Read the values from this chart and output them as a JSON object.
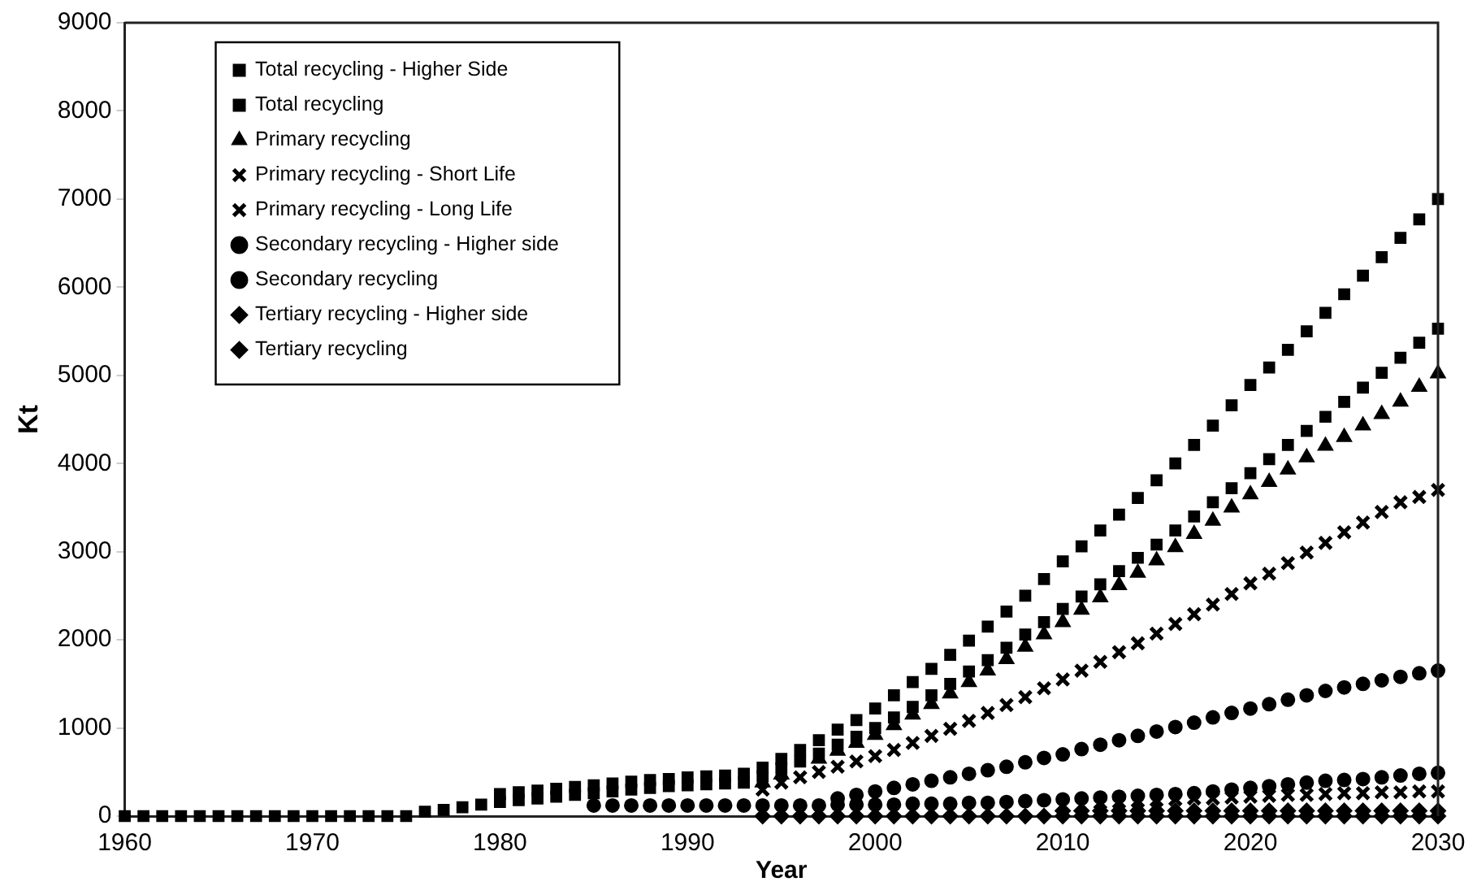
{
  "chart_data": {
    "type": "scatter",
    "xlabel": "Year",
    "ylabel": "Kt",
    "xlim": [
      1960,
      2030
    ],
    "xticks": [
      1960,
      1970,
      1980,
      1990,
      2000,
      2010,
      2020,
      2030
    ],
    "ylim": [
      0,
      9000
    ],
    "yticks": [
      0,
      1000,
      2000,
      3000,
      4000,
      5000,
      6000,
      7000,
      8000,
      9000
    ],
    "grid": false,
    "legend": "top left",
    "x": [
      1960,
      1961,
      1962,
      1963,
      1964,
      1965,
      1966,
      1967,
      1968,
      1969,
      1970,
      1971,
      1972,
      1973,
      1974,
      1975,
      1976,
      1977,
      1978,
      1979,
      1980,
      1981,
      1982,
      1983,
      1984,
      1985,
      1986,
      1987,
      1988,
      1989,
      1990,
      1991,
      1992,
      1993,
      1994,
      1995,
      1996,
      1997,
      1998,
      1999,
      2000,
      2001,
      2002,
      2003,
      2004,
      2005,
      2006,
      2007,
      2008,
      2009,
      2010,
      2011,
      2012,
      2013,
      2014,
      2015,
      2016,
      2017,
      2018,
      2019,
      2020,
      2021,
      2022,
      2023,
      2024,
      2025,
      2026,
      2027,
      2028,
      2029,
      2030
    ],
    "series": [
      {
        "name": "Total recycling - Higher Side",
        "color": "#000000",
        "marker": "square",
        "values": [
          null,
          null,
          null,
          null,
          null,
          null,
          null,
          null,
          null,
          null,
          null,
          null,
          null,
          null,
          null,
          null,
          null,
          null,
          null,
          null,
          250,
          270,
          290,
          310,
          330,
          350,
          370,
          390,
          410,
          420,
          440,
          450,
          460,
          480,
          550,
          650,
          750,
          860,
          980,
          1090,
          1220,
          1370,
          1520,
          1670,
          1830,
          1990,
          2150,
          2320,
          2500,
          2690,
          2890,
          3060,
          3240,
          3420,
          3610,
          3810,
          4000,
          4210,
          4430,
          4660,
          4890,
          5090,
          5290,
          5500,
          5710,
          5920,
          6130,
          6340,
          6560,
          6770,
          7000
        ]
      },
      {
        "name": "Total recycling",
        "color": "#000000",
        "marker": "square",
        "values": [
          0,
          0,
          0,
          0,
          0,
          0,
          0,
          0,
          0,
          0,
          0,
          0,
          0,
          0,
          0,
          0,
          50,
          70,
          100,
          130,
          160,
          180,
          200,
          220,
          240,
          260,
          280,
          300,
          320,
          340,
          350,
          360,
          370,
          380,
          450,
          540,
          620,
          710,
          810,
          900,
          1000,
          1120,
          1240,
          1370,
          1500,
          1640,
          1770,
          1910,
          2060,
          2200,
          2350,
          2490,
          2630,
          2780,
          2930,
          3080,
          3240,
          3400,
          3560,
          3720,
          3890,
          4050,
          4210,
          4370,
          4530,
          4700,
          4860,
          5030,
          5200,
          5370,
          5530
        ]
      },
      {
        "name": "Primary recycling",
        "color": "#000000",
        "marker": "triangle",
        "values": [
          null,
          null,
          null,
          null,
          null,
          null,
          null,
          null,
          null,
          null,
          null,
          null,
          null,
          null,
          null,
          null,
          null,
          null,
          null,
          null,
          null,
          null,
          null,
          null,
          null,
          null,
          null,
          null,
          null,
          null,
          null,
          null,
          null,
          null,
          380,
          470,
          null,
          650,
          740,
          830,
          920,
          1030,
          1150,
          1270,
          1390,
          1520,
          1650,
          1780,
          1920,
          2060,
          2200,
          2340,
          2480,
          2620,
          2760,
          2900,
          3050,
          3200,
          3350,
          3500,
          3650,
          3790,
          3930,
          4070,
          4200,
          4300,
          4430,
          4560,
          4700,
          4870,
          5020
        ]
      },
      {
        "name": "Primary recycling - Short Life",
        "color": "#000000",
        "marker": "cross",
        "values": [
          null,
          null,
          null,
          null,
          null,
          null,
          null,
          null,
          null,
          null,
          null,
          null,
          null,
          null,
          null,
          null,
          null,
          null,
          null,
          null,
          null,
          null,
          null,
          null,
          null,
          null,
          null,
          null,
          null,
          null,
          null,
          null,
          null,
          null,
          300,
          380,
          440,
          500,
          560,
          620,
          680,
          750,
          830,
          910,
          990,
          1080,
          1170,
          1260,
          1350,
          1450,
          1550,
          1650,
          1750,
          1860,
          1960,
          2070,
          2180,
          2290,
          2400,
          2520,
          2640,
          2750,
          2870,
          2990,
          3100,
          3220,
          3330,
          3450,
          3560,
          3620,
          3700
        ]
      },
      {
        "name": "Primary recycling - Long Life",
        "color": "#000000",
        "marker": "cross",
        "values": [
          null,
          null,
          null,
          null,
          null,
          null,
          null,
          null,
          null,
          null,
          null,
          null,
          null,
          null,
          null,
          null,
          null,
          null,
          null,
          null,
          null,
          null,
          null,
          null,
          null,
          null,
          null,
          null,
          null,
          null,
          null,
          null,
          null,
          null,
          null,
          null,
          null,
          null,
          null,
          null,
          null,
          null,
          null,
          null,
          null,
          null,
          null,
          null,
          null,
          null,
          null,
          null,
          150,
          160,
          170,
          180,
          190,
          200,
          200,
          210,
          220,
          230,
          240,
          240,
          250,
          260,
          260,
          270,
          270,
          280,
          280
        ]
      },
      {
        "name": "Secondary recycling - Higher side",
        "color": "#000000",
        "marker": "circle",
        "values": [
          null,
          null,
          null,
          null,
          null,
          null,
          null,
          null,
          null,
          null,
          null,
          null,
          null,
          null,
          null,
          null,
          null,
          null,
          null,
          null,
          null,
          null,
          null,
          null,
          null,
          null,
          null,
          null,
          null,
          null,
          null,
          null,
          null,
          null,
          null,
          null,
          null,
          null,
          200,
          240,
          280,
          320,
          360,
          400,
          440,
          480,
          520,
          560,
          610,
          660,
          700,
          760,
          810,
          860,
          910,
          960,
          1010,
          1060,
          1120,
          1170,
          1220,
          1270,
          1320,
          1370,
          1420,
          1460,
          1500,
          1540,
          1580,
          1620,
          1650
        ]
      },
      {
        "name": "Secondary recycling",
        "color": "#000000",
        "marker": "circle",
        "values": [
          null,
          null,
          null,
          null,
          null,
          null,
          null,
          null,
          null,
          null,
          null,
          null,
          null,
          null,
          null,
          null,
          null,
          null,
          null,
          null,
          null,
          null,
          null,
          null,
          null,
          120,
          120,
          120,
          120,
          120,
          120,
          120,
          120,
          120,
          120,
          120,
          120,
          120,
          130,
          130,
          130,
          130,
          140,
          140,
          140,
          150,
          150,
          160,
          170,
          180,
          190,
          200,
          210,
          220,
          230,
          240,
          250,
          260,
          280,
          300,
          320,
          340,
          360,
          380,
          400,
          410,
          420,
          440,
          460,
          480,
          490
        ]
      },
      {
        "name": "Tertiary recycling - Higher side",
        "color": "#000000",
        "marker": "diamond",
        "values": [
          null,
          null,
          null,
          null,
          null,
          null,
          null,
          null,
          null,
          null,
          null,
          null,
          null,
          null,
          null,
          null,
          null,
          null,
          null,
          null,
          null,
          null,
          null,
          null,
          null,
          null,
          null,
          null,
          null,
          null,
          null,
          null,
          null,
          null,
          null,
          null,
          null,
          null,
          null,
          null,
          null,
          null,
          null,
          null,
          null,
          null,
          null,
          null,
          null,
          null,
          60,
          60,
          60,
          60,
          60,
          60,
          60,
          60,
          60,
          60,
          60,
          60,
          60,
          60,
          60,
          60,
          60,
          60,
          60,
          60,
          60
        ]
      },
      {
        "name": "Tertiary recycling",
        "color": "#000000",
        "marker": "diamond",
        "values": [
          null,
          null,
          null,
          null,
          null,
          null,
          null,
          null,
          null,
          null,
          null,
          null,
          null,
          null,
          null,
          null,
          null,
          null,
          null,
          null,
          null,
          null,
          null,
          null,
          null,
          null,
          null,
          null,
          null,
          null,
          null,
          null,
          null,
          null,
          0,
          0,
          0,
          0,
          0,
          0,
          0,
          0,
          0,
          0,
          0,
          0,
          0,
          0,
          0,
          0,
          0,
          0,
          0,
          0,
          0,
          0,
          0,
          0,
          0,
          0,
          0,
          0,
          0,
          0,
          0,
          0,
          0,
          0,
          0,
          0,
          0
        ]
      }
    ]
  }
}
